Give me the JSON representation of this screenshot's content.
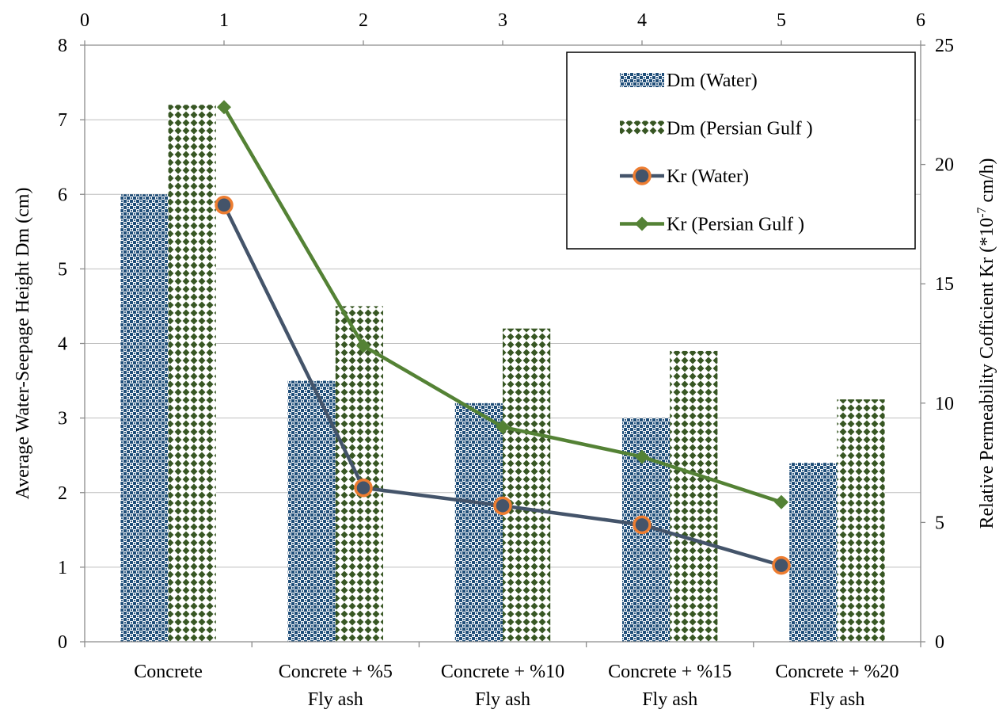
{
  "chart_data": {
    "type": "bar",
    "categories": [
      [
        "Concrete"
      ],
      [
        "Concrete + %5",
        "Fly ash"
      ],
      [
        "Concrete + %10",
        "Fly ash"
      ],
      [
        "Concrete + %15",
        "Fly ash"
      ],
      [
        "Concrete + %20",
        "Fly ash"
      ]
    ],
    "bar_series": [
      {
        "name": "Dm (Water)",
        "values": [
          6.0,
          3.5,
          3.2,
          3.0,
          2.4
        ],
        "color": "#1f4e79",
        "pattern": "checker"
      },
      {
        "name": "Dm (Persian Gulf )",
        "values": [
          7.2,
          4.5,
          4.2,
          3.9,
          3.25
        ],
        "color": "#375623",
        "pattern": "diamond"
      }
    ],
    "line_series": [
      {
        "name": "Kr (Water)",
        "x": [
          1,
          2,
          3,
          4,
          5
        ],
        "values": [
          18.3,
          6.45,
          5.7,
          4.9,
          3.2
        ],
        "color": "#44546a",
        "marker": "circle",
        "marker_fill": "#44546a",
        "marker_edge": "#ed7d31"
      },
      {
        "name": "Kr (Persian Gulf )",
        "x": [
          1,
          2,
          3,
          4,
          5
        ],
        "values": [
          22.4,
          12.4,
          9.0,
          7.75,
          5.85
        ],
        "color": "#548235",
        "marker": "diamond"
      }
    ],
    "y_left": {
      "label": "Average Water-Seepage Height Dm (cm)",
      "ylim": [
        0,
        8
      ],
      "ticks": [
        "0",
        "1",
        "2",
        "3",
        "4",
        "5",
        "6",
        "7",
        "8"
      ]
    },
    "y_right": {
      "label_main": "Relative Permeability Cofficient Kr (*10",
      "label_sup": "-7",
      "label_tail": " cm/h)",
      "ylim": [
        0,
        25
      ],
      "ticks": [
        "0",
        "5",
        "10",
        "15",
        "20",
        "25"
      ]
    },
    "x_top": {
      "xlim": [
        0,
        6
      ],
      "ticks": [
        "0",
        "1",
        "2",
        "3",
        "4",
        "5",
        "6"
      ]
    },
    "grid": true,
    "legend": {
      "position": "top-right"
    }
  }
}
